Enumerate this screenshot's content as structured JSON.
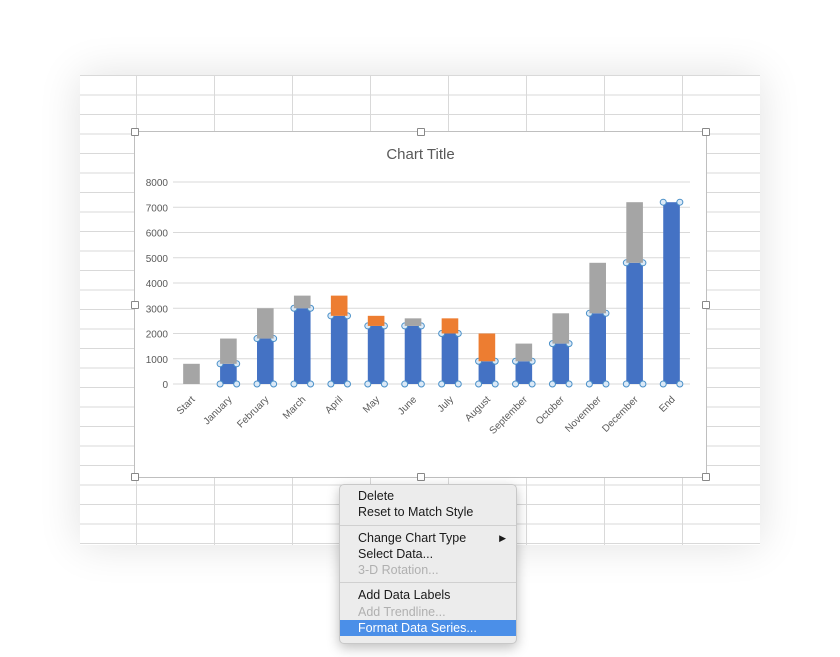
{
  "chart_data": {
    "type": "bar",
    "stacked": true,
    "title": "Chart Title",
    "categories": [
      "Start",
      "January",
      "February",
      "March",
      "April",
      "May",
      "June",
      "July",
      "August",
      "September",
      "October",
      "November",
      "December",
      "End"
    ],
    "series": [
      {
        "values": [
          0,
          800,
          1800,
          3000,
          2700,
          2300,
          2300,
          2000,
          900,
          900,
          1600,
          2800,
          4800,
          7200
        ],
        "color": "#4472c4"
      },
      {
        "values": [
          800,
          1000,
          1200,
          500,
          0,
          0,
          300,
          0,
          0,
          700,
          1200,
          2000,
          2400,
          0
        ],
        "color": "#a5a5a5"
      },
      {
        "values": [
          0,
          0,
          0,
          0,
          800,
          400,
          0,
          600,
          1100,
          0,
          0,
          0,
          0,
          0
        ],
        "color": "#ed7d31"
      }
    ],
    "yticks": [
      0,
      1000,
      2000,
      3000,
      4000,
      5000,
      6000,
      7000,
      8000
    ],
    "ylim": [
      0,
      8000
    ],
    "grid": true,
    "selected_series": 0
  },
  "menu": {
    "items": [
      {
        "label": "Delete",
        "disabled": false
      },
      {
        "label": "Reset to Match Style",
        "disabled": false
      },
      {
        "label": "Change Chart Type",
        "disabled": false,
        "submenu": true
      },
      {
        "label": "Select Data...",
        "disabled": false
      },
      {
        "label": "3-D Rotation...",
        "disabled": true
      },
      {
        "label": "Add Data Labels",
        "disabled": false
      },
      {
        "label": "Add Trendline...",
        "disabled": true
      },
      {
        "label": "Format Data Series...",
        "disabled": false,
        "highlighted": true
      }
    ],
    "submenu_arrow": "▶"
  }
}
